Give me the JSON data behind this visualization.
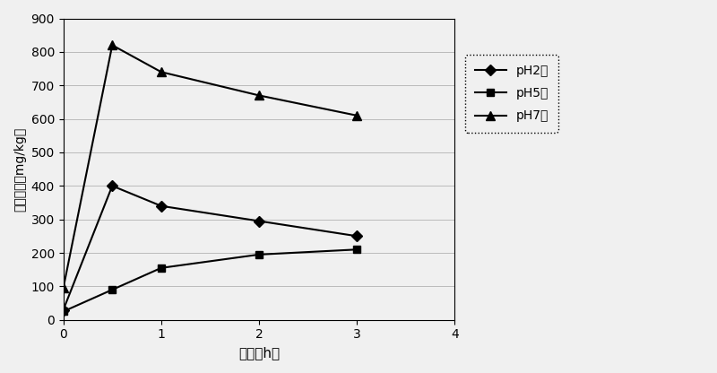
{
  "series": [
    {
      "label": "pH2水",
      "x": [
        0,
        0.5,
        1,
        2,
        3
      ],
      "y": [
        30,
        400,
        340,
        295,
        250
      ],
      "marker": "D",
      "color": "#000000",
      "markersize": 6
    },
    {
      "label": "pH5水",
      "x": [
        0,
        0.5,
        1,
        2,
        3
      ],
      "y": [
        25,
        90,
        155,
        195,
        210
      ],
      "marker": "s",
      "color": "#000000",
      "markersize": 6
    },
    {
      "label": "pH7水",
      "x": [
        0,
        0.5,
        1,
        2,
        3
      ],
      "y": [
        95,
        820,
        740,
        670,
        610
      ],
      "marker": "^",
      "color": "#000000",
      "markersize": 7
    }
  ],
  "xlabel": "时间（h）",
  "ylabel": "甲醇含量（mg/kg）",
  "xlim": [
    0,
    4
  ],
  "ylim": [
    0,
    900
  ],
  "xticks": [
    0,
    1,
    2,
    3,
    4
  ],
  "yticks": [
    0,
    100,
    200,
    300,
    400,
    500,
    600,
    700,
    800,
    900
  ],
  "grid_color": "#999999",
  "background_color": "#f0f0f0",
  "figsize": [
    8.0,
    4.16
  ],
  "dpi": 100
}
